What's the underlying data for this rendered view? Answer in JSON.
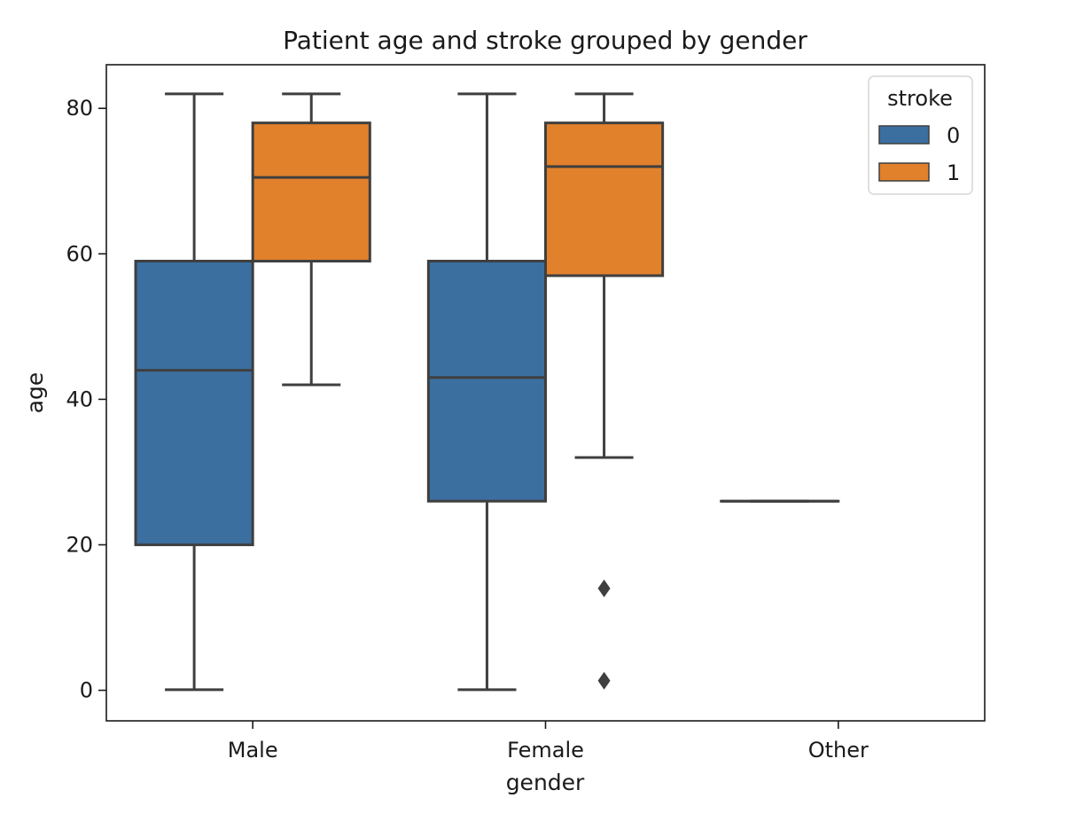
{
  "chart_data": {
    "type": "box",
    "title": "Patient age and stroke grouped by gender",
    "xlabel": "gender",
    "ylabel": "age",
    "categories": [
      "Male",
      "Female",
      "Other"
    ],
    "ylim": [
      -4.2,
      86
    ],
    "yticks": [
      0,
      20,
      40,
      60,
      80
    ],
    "grid": false,
    "legend": {
      "title": "stroke",
      "position": "top-right"
    },
    "series": [
      {
        "name": "0",
        "color": "#3b6fa0",
        "boxes": [
          {
            "category": "Male",
            "whisker_low": 0.08,
            "q1": 20,
            "median": 44,
            "q3": 59,
            "whisker_high": 82,
            "outliers": []
          },
          {
            "category": "Female",
            "whisker_low": 0.08,
            "q1": 26,
            "median": 43,
            "q3": 59,
            "whisker_high": 82,
            "outliers": []
          },
          {
            "category": "Other",
            "whisker_low": 26,
            "q1": 26,
            "median": 26,
            "q3": 26,
            "whisker_high": 26,
            "outliers": []
          }
        ]
      },
      {
        "name": "1",
        "color": "#e1812c",
        "boxes": [
          {
            "category": "Male",
            "whisker_low": 42,
            "q1": 59,
            "median": 70.5,
            "q3": 78,
            "whisker_high": 82,
            "outliers": []
          },
          {
            "category": "Female",
            "whisker_low": 32,
            "q1": 57,
            "median": 72,
            "q3": 78,
            "whisker_high": 82,
            "outliers": [
              14,
              1.32
            ]
          }
        ]
      }
    ]
  }
}
